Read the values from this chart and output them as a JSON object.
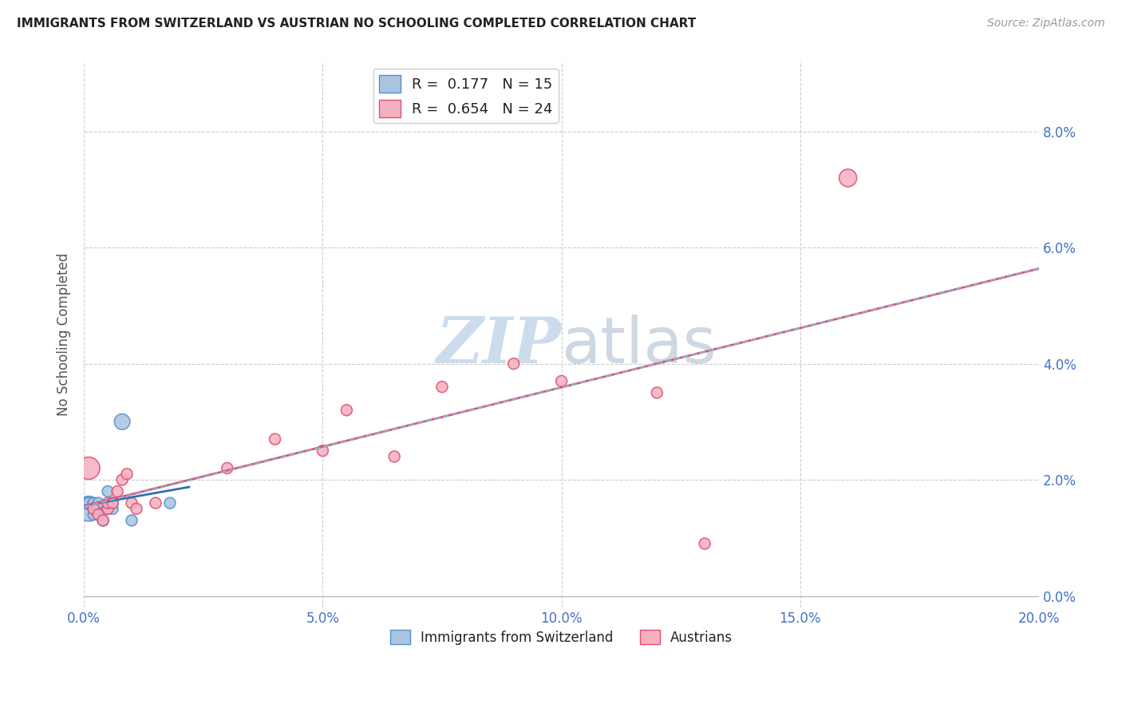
{
  "title": "IMMIGRANTS FROM SWITZERLAND VS AUSTRIAN NO SCHOOLING COMPLETED CORRELATION CHART",
  "source": "Source: ZipAtlas.com",
  "ylabel": "No Schooling Completed",
  "xlabel_ticks": [
    "0.0%",
    "",
    "",
    "",
    "",
    "5.0%",
    "",
    "",
    "",
    "",
    "10.0%",
    "",
    "",
    "",
    "",
    "15.0%",
    "",
    "",
    "",
    "",
    "20.0%"
  ],
  "ylabel_ticks_right": [
    "0.0%",
    "2.0%",
    "4.0%",
    "6.0%",
    "8.0%"
  ],
  "xlim": [
    0.0,
    0.2
  ],
  "ylim": [
    -0.002,
    0.092
  ],
  "legend_label1": "R =  0.177   N = 15",
  "legend_label2": "R =  0.654   N = 24",
  "legend_bottom_label1": "Immigrants from Switzerland",
  "legend_bottom_label2": "Austrians",
  "swiss_color": "#aac4e0",
  "swiss_edge_color": "#5590cc",
  "austrian_color": "#f4b0c0",
  "austrian_edge_color": "#e05070",
  "swiss_x": [
    0.001,
    0.001,
    0.001,
    0.002,
    0.002,
    0.003,
    0.003,
    0.004,
    0.005,
    0.005,
    0.006,
    0.006,
    0.008,
    0.01,
    0.018
  ],
  "swiss_y": [
    0.015,
    0.016,
    0.016,
    0.014,
    0.016,
    0.015,
    0.016,
    0.013,
    0.015,
    0.018,
    0.015,
    0.016,
    0.03,
    0.013,
    0.016
  ],
  "swiss_sizes": [
    500,
    150,
    100,
    100,
    100,
    100,
    100,
    100,
    100,
    100,
    100,
    100,
    200,
    100,
    100
  ],
  "austrian_x": [
    0.001,
    0.002,
    0.003,
    0.004,
    0.005,
    0.005,
    0.006,
    0.007,
    0.008,
    0.009,
    0.01,
    0.011,
    0.015,
    0.03,
    0.04,
    0.05,
    0.055,
    0.065,
    0.075,
    0.09,
    0.1,
    0.12,
    0.13,
    0.16
  ],
  "austrian_y": [
    0.022,
    0.015,
    0.014,
    0.013,
    0.015,
    0.016,
    0.016,
    0.018,
    0.02,
    0.021,
    0.016,
    0.015,
    0.016,
    0.022,
    0.027,
    0.025,
    0.032,
    0.024,
    0.036,
    0.04,
    0.037,
    0.035,
    0.009,
    0.072
  ],
  "austrian_sizes": [
    400,
    100,
    100,
    100,
    100,
    100,
    100,
    100,
    100,
    100,
    100,
    100,
    100,
    100,
    100,
    100,
    100,
    100,
    100,
    100,
    100,
    100,
    100,
    250
  ],
  "background_color": "#ffffff",
  "grid_color": "#cccccc",
  "watermark_color": "#ccdcec",
  "trendline_swiss_color": "#3070b0",
  "trendline_austrian_color": "#e05070",
  "trendline_dashed_color": "#90b0d0"
}
